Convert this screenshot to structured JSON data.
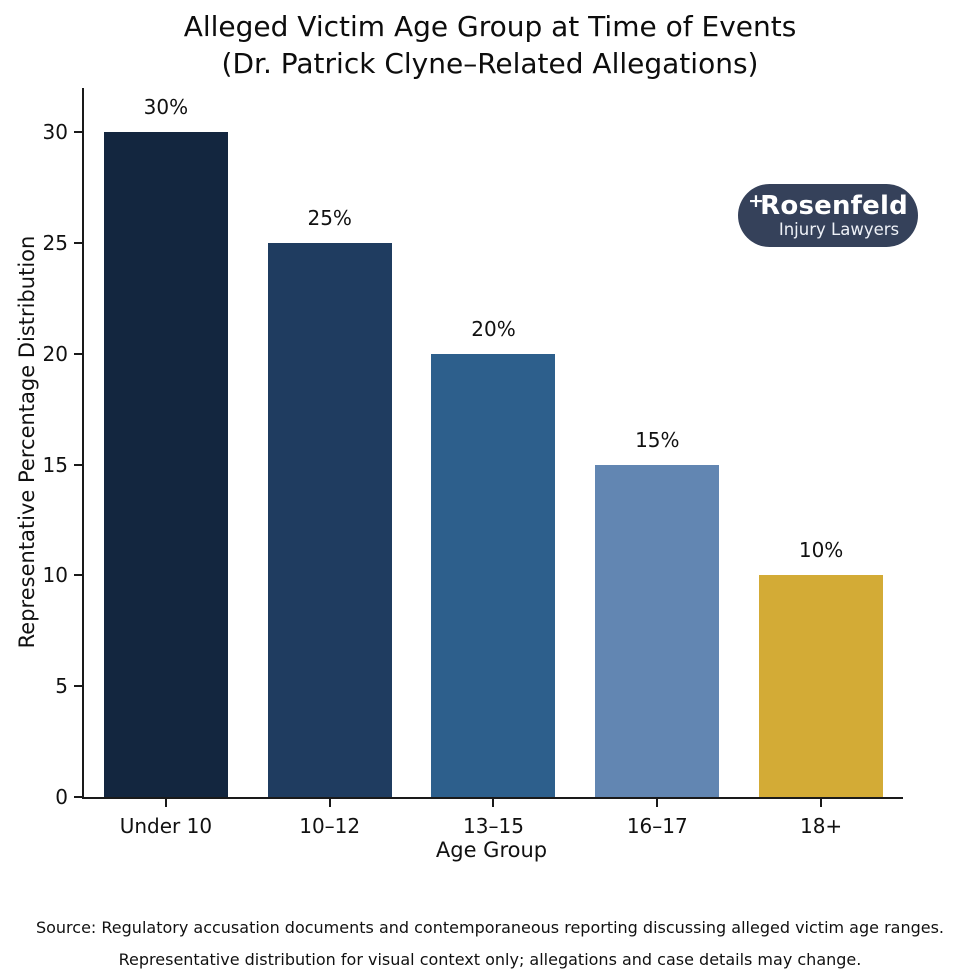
{
  "chart_data": {
    "type": "bar",
    "title": "Alleged Victim Age Group at Time of Events",
    "subtitle": "(Dr. Patrick Clyne–Related Allegations)",
    "categories": [
      "Under 10",
      "10–12",
      "13–15",
      "16–17",
      "18+"
    ],
    "values": [
      30,
      25,
      20,
      15,
      10
    ],
    "value_labels": [
      "30%",
      "25%",
      "20%",
      "15%",
      "10%"
    ],
    "bar_colors": [
      "#13263f",
      "#1f3c60",
      "#2d5f8c",
      "#6286b2",
      "#d3ab36"
    ],
    "xlabel": "Age Group",
    "ylabel": "Representative Percentage Distribution",
    "yticks": [
      0,
      5,
      10,
      15,
      20,
      25,
      30
    ],
    "ylim": [
      0,
      32
    ],
    "grid": false,
    "legend": "none",
    "spine_color": "#1a1a1a"
  },
  "logo": {
    "name": "Rosenfeld",
    "tagline": "Injury Lawyers",
    "cross_glyph": "+",
    "background": "#35415a",
    "text_color": "#ffffff"
  },
  "footer": {
    "line1": "Source: Regulatory accusation documents and contemporaneous reporting discussing alleged victim age ranges.",
    "line2": "Representative distribution for visual context only; allegations and case details may change."
  }
}
